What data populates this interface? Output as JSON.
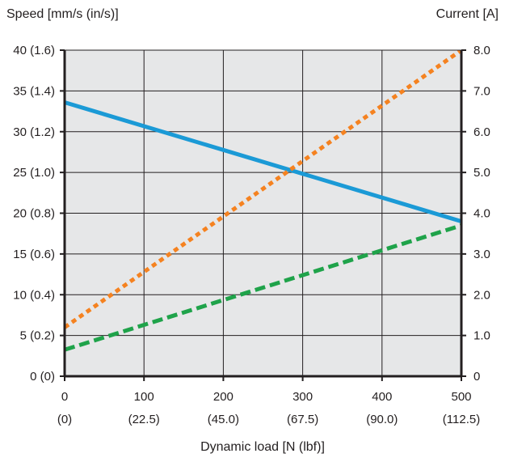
{
  "chart_data": {
    "type": "line",
    "xlabel": "Dynamic load [N (lbf)]",
    "ylabel_left": "Speed [mm/s (in/s)]",
    "ylabel_right": "Current [A]",
    "xlim": [
      0,
      500
    ],
    "ylim_left": [
      0,
      40
    ],
    "ylim_right": [
      0,
      8
    ],
    "grid": true,
    "plot_background": "#e6e7e8",
    "x_ticks": [
      {
        "value": 0,
        "label": "0",
        "sublabel": "(0)"
      },
      {
        "value": 100,
        "label": "100",
        "sublabel": "(22.5)"
      },
      {
        "value": 200,
        "label": "200",
        "sublabel": "(45.0)"
      },
      {
        "value": 300,
        "label": "300",
        "sublabel": "(67.5)"
      },
      {
        "value": 400,
        "label": "400",
        "sublabel": "(90.0)"
      },
      {
        "value": 500,
        "label": "500",
        "sublabel": "(112.5)"
      }
    ],
    "y_left_ticks": [
      {
        "value": 0,
        "label": "0 (0)"
      },
      {
        "value": 5,
        "label": "5 (0.2)"
      },
      {
        "value": 10,
        "label": "10 (0.4)"
      },
      {
        "value": 15,
        "label": "15 (0.6)"
      },
      {
        "value": 20,
        "label": "20 (0.8)"
      },
      {
        "value": 25,
        "label": "25 (1.0)"
      },
      {
        "value": 30,
        "label": "30 (1.2)"
      },
      {
        "value": 35,
        "label": "35 (1.4)"
      },
      {
        "value": 40,
        "label": "40 (1.6)"
      }
    ],
    "y_right_ticks": [
      {
        "value": 0,
        "label": "0"
      },
      {
        "value": 1,
        "label": "1.0"
      },
      {
        "value": 2,
        "label": "2.0"
      },
      {
        "value": 3,
        "label": "3.0"
      },
      {
        "value": 4,
        "label": "4.0"
      },
      {
        "value": 5,
        "label": "5.0"
      },
      {
        "value": 6,
        "label": "6.0"
      },
      {
        "value": 7,
        "label": "7.0"
      },
      {
        "value": 8,
        "label": "8.0"
      }
    ],
    "series": [
      {
        "axis": "left",
        "style": "solid",
        "color": "#1b9ad6",
        "x": [
          0,
          500
        ],
        "y": [
          33.6,
          19.0
        ]
      },
      {
        "axis": "right",
        "style": "dotted",
        "color": "#f58220",
        "x": [
          0,
          500
        ],
        "y": [
          1.2,
          8.0
        ]
      },
      {
        "axis": "right",
        "style": "dashed",
        "color": "#1fa34a",
        "x": [
          0,
          500
        ],
        "y": [
          0.65,
          3.7
        ]
      }
    ]
  }
}
